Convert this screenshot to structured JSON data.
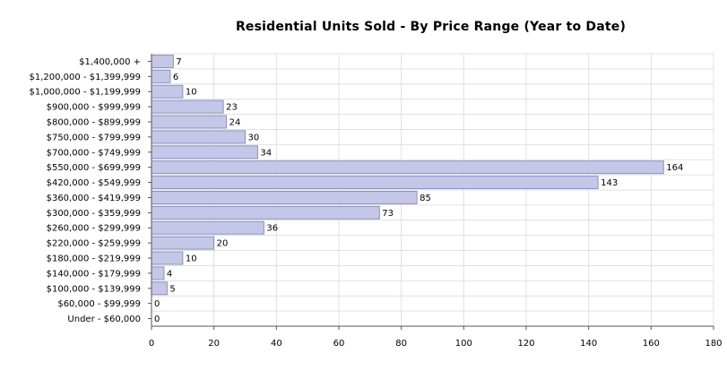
{
  "chart_data": {
    "type": "bar",
    "orientation": "horizontal",
    "title": "Residential Units Sold - By Price Range (Year to Date)",
    "xlabel": "",
    "ylabel": "",
    "xlim": [
      0,
      180
    ],
    "x_ticks": [
      "0",
      "20",
      "40",
      "60",
      "80",
      "100",
      "120",
      "140",
      "160",
      "180"
    ],
    "grid": true,
    "categories": [
      "$1,400,000 +",
      "$1,200,000 - $1,399,999",
      "$1,000,000 - $1,199,999",
      "$900,000 - $999,999",
      "$800,000 - $899,999",
      "$750,000 - $799,999",
      "$700,000 - $749,999",
      "$550,000 - $699,999",
      "$420,000 - $549,999",
      "$360,000 - $419,999",
      "$300,000 - $359,999",
      "$260,000 - $299,999",
      "$220,000 - $259,999",
      "$180,000 - $219,999",
      "$140,000 - $179,999",
      "$100,000 - $139,999",
      "$60,000 - $99,999",
      "Under - $60,000"
    ],
    "values": [
      7,
      6,
      10,
      23,
      24,
      30,
      34,
      164,
      143,
      85,
      73,
      36,
      20,
      10,
      4,
      5,
      0,
      0
    ],
    "data_labels": [
      "7",
      "6",
      "10",
      "23",
      "24",
      "30",
      "34",
      "164",
      "143",
      "85",
      "73",
      "36",
      "20",
      "10",
      "4",
      "5",
      "0",
      "0"
    ],
    "colors": {
      "bar_fill": "#c5c7e8",
      "bar_stroke": "#8c8fc0",
      "grid": "#e0e0e0",
      "axis": "#555555"
    }
  }
}
